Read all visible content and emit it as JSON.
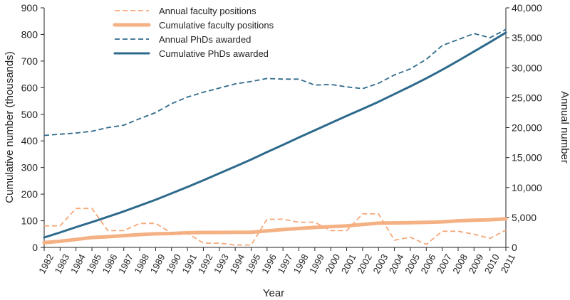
{
  "chart_data": {
    "type": "line",
    "title": "",
    "xlabel": "Year",
    "ylabel_left": "Cumulative number (thousands)",
    "ylabel_right": "Annual number",
    "ylim_left": [
      0,
      900
    ],
    "ylim_right": [
      0,
      40000
    ],
    "yticks_left": [
      0,
      100,
      200,
      300,
      400,
      500,
      600,
      700,
      800,
      900
    ],
    "yticks_right": [
      0,
      5000,
      10000,
      15000,
      20000,
      25000,
      30000,
      35000,
      40000
    ],
    "ytick_labels_left": [
      "0",
      "100",
      "200",
      "300",
      "400",
      "500",
      "600",
      "700",
      "800",
      "900"
    ],
    "ytick_labels_right": [
      "0",
      "5,000",
      "10,000",
      "15,000",
      "20,000",
      "25,000",
      "30,000",
      "35,000",
      "40,000"
    ],
    "x": [
      "1982",
      "1983",
      "1984",
      "1985",
      "1986",
      "1987",
      "1988",
      "1989",
      "1990",
      "1991",
      "1992",
      "1993",
      "1994",
      "1995",
      "1996",
      "1997",
      "1998",
      "1999",
      "2000",
      "2001",
      "2002",
      "2003",
      "2004",
      "2005",
      "2006",
      "2007",
      "2008",
      "2009",
      "2010",
      "2011"
    ],
    "legend_position": "top-left",
    "grid": false,
    "series": [
      {
        "name": "Annual faculty positions",
        "axis": "right",
        "style": "dashed",
        "color": "#F4A97A",
        "values": [
          3600,
          3600,
          6500,
          6500,
          2800,
          2800,
          4000,
          4000,
          2400,
          2400,
          700,
          700,
          400,
          400,
          4700,
          4700,
          4200,
          4200,
          2800,
          2800,
          5600,
          5600,
          1200,
          1700,
          500,
          2700,
          2700,
          2200,
          1500,
          2900
        ]
      },
      {
        "name": "Cumulative faculty positions",
        "axis": "left",
        "style": "solid-thick",
        "color": "#F4B183",
        "values": [
          18,
          23,
          30,
          37,
          40,
          44,
          48,
          51,
          52,
          55,
          56,
          56,
          57,
          57,
          62,
          67,
          71,
          75,
          78,
          81,
          86,
          91,
          92,
          93,
          94,
          96,
          100,
          102,
          104,
          107
        ]
      },
      {
        "name": "Annual PhDs awarded",
        "axis": "right",
        "style": "dashed",
        "color": "#2E6A8C",
        "values": [
          18700,
          18900,
          19100,
          19400,
          20000,
          20400,
          21500,
          22500,
          24000,
          25100,
          25900,
          26600,
          27300,
          27700,
          28200,
          28100,
          28100,
          27100,
          27200,
          26800,
          26500,
          27400,
          28800,
          29800,
          31400,
          33700,
          34700,
          35700,
          35000,
          36400
        ]
      },
      {
        "name": "Cumulative PhDs awarded",
        "axis": "left",
        "style": "solid",
        "color": "#2E6A8C",
        "values": [
          37,
          56,
          76,
          95,
          115,
          135,
          157,
          179,
          203,
          227,
          252,
          278,
          304,
          330,
          358,
          385,
          413,
          440,
          467,
          494,
          520,
          547,
          576,
          605,
          635,
          667,
          701,
          736,
          771,
          807
        ]
      }
    ]
  }
}
